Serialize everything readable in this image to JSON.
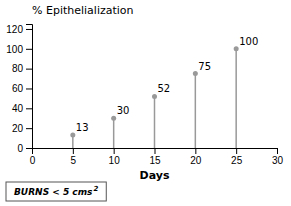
{
  "chart_data": {
    "type": "stem",
    "title": "% Epithelialization",
    "x_label": "Days",
    "x": [
      5,
      10,
      15,
      20,
      25
    ],
    "values": [
      13,
      30,
      52,
      75,
      100
    ],
    "color": "#999999",
    "marker": "o",
    "xlim": [
      0,
      30
    ],
    "xticks": [
      0,
      5,
      10,
      15,
      20,
      25,
      30
    ],
    "ylim": [
      0,
      125
    ],
    "yticks": [
      0,
      20,
      40,
      60,
      80,
      100,
      120
    ],
    "grid": false,
    "data_labels": true,
    "annotations": [
      "BURNS < 5 cms",
      "2"
    ]
  }
}
